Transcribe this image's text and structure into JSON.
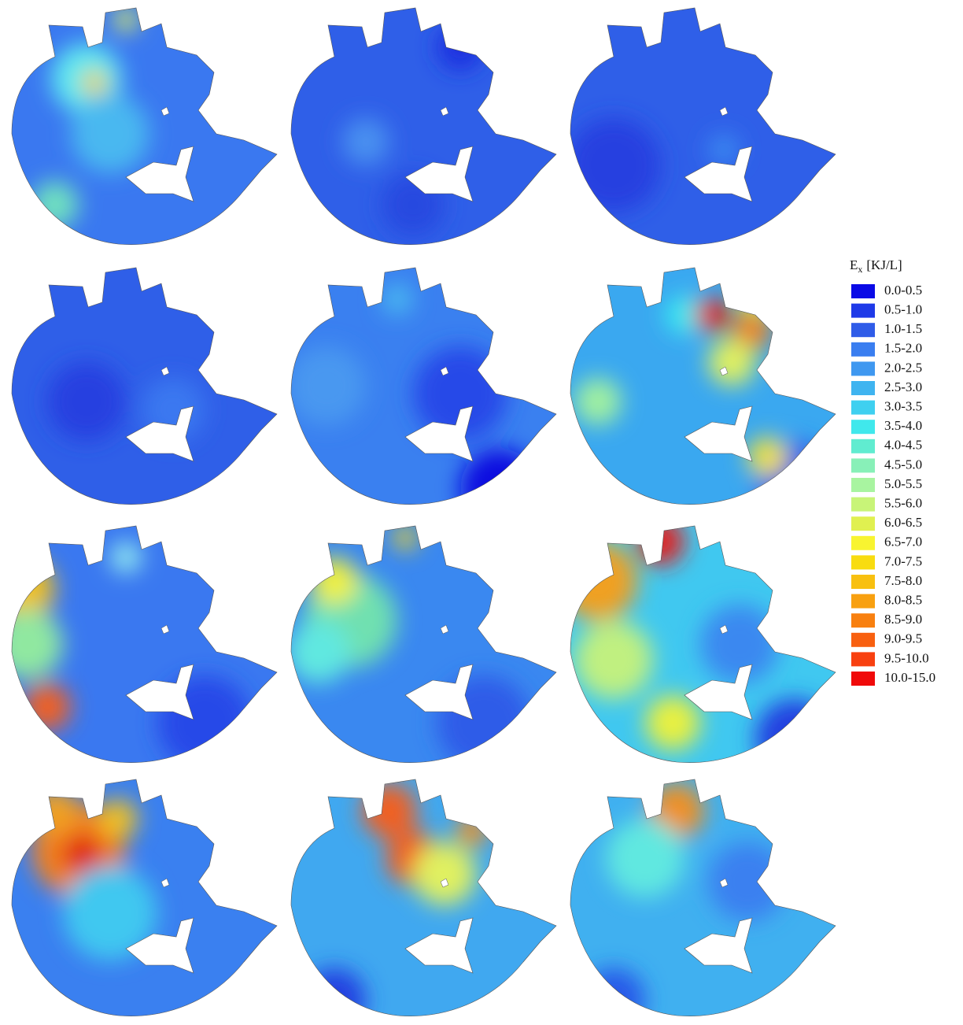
{
  "legend": {
    "title": {
      "symbol": "E",
      "subscript": "x",
      "unit": "[KJ/L]"
    },
    "entries": [
      {
        "label": "0.0-0.5",
        "color": "#0a0ae6"
      },
      {
        "label": "0.5-1.0",
        "color": "#1f3ae8"
      },
      {
        "label": "1.0-1.5",
        "color": "#2f5ce8"
      },
      {
        "label": "1.5-2.0",
        "color": "#3a7ef0"
      },
      {
        "label": "2.0-2.5",
        "color": "#3f98f0"
      },
      {
        "label": "2.5-3.0",
        "color": "#3fb4f0"
      },
      {
        "label": "3.0-3.5",
        "color": "#3fd0f0"
      },
      {
        "label": "3.5-4.0",
        "color": "#40e8ec"
      },
      {
        "label": "4.0-4.5",
        "color": "#60ecd0"
      },
      {
        "label": "4.5-5.0",
        "color": "#88f0b8"
      },
      {
        "label": "5.0-5.5",
        "color": "#a8f4a0"
      },
      {
        "label": "5.5-6.0",
        "color": "#c8f478"
      },
      {
        "label": "6.0-6.5",
        "color": "#e0f050"
      },
      {
        "label": "6.5-7.0",
        "color": "#f8f430"
      },
      {
        "label": "7.0-7.5",
        "color": "#f8dc10"
      },
      {
        "label": "7.5-8.0",
        "color": "#f8c010"
      },
      {
        "label": "8.0-8.5",
        "color": "#f8a010"
      },
      {
        "label": "8.5-9.0",
        "color": "#f88010"
      },
      {
        "label": "9.0-9.5",
        "color": "#f86010"
      },
      {
        "label": "9.5-10.0",
        "color": "#f84010"
      },
      {
        "label": "10.0-15.0",
        "color": "#f00a0a"
      }
    ]
  }
}
